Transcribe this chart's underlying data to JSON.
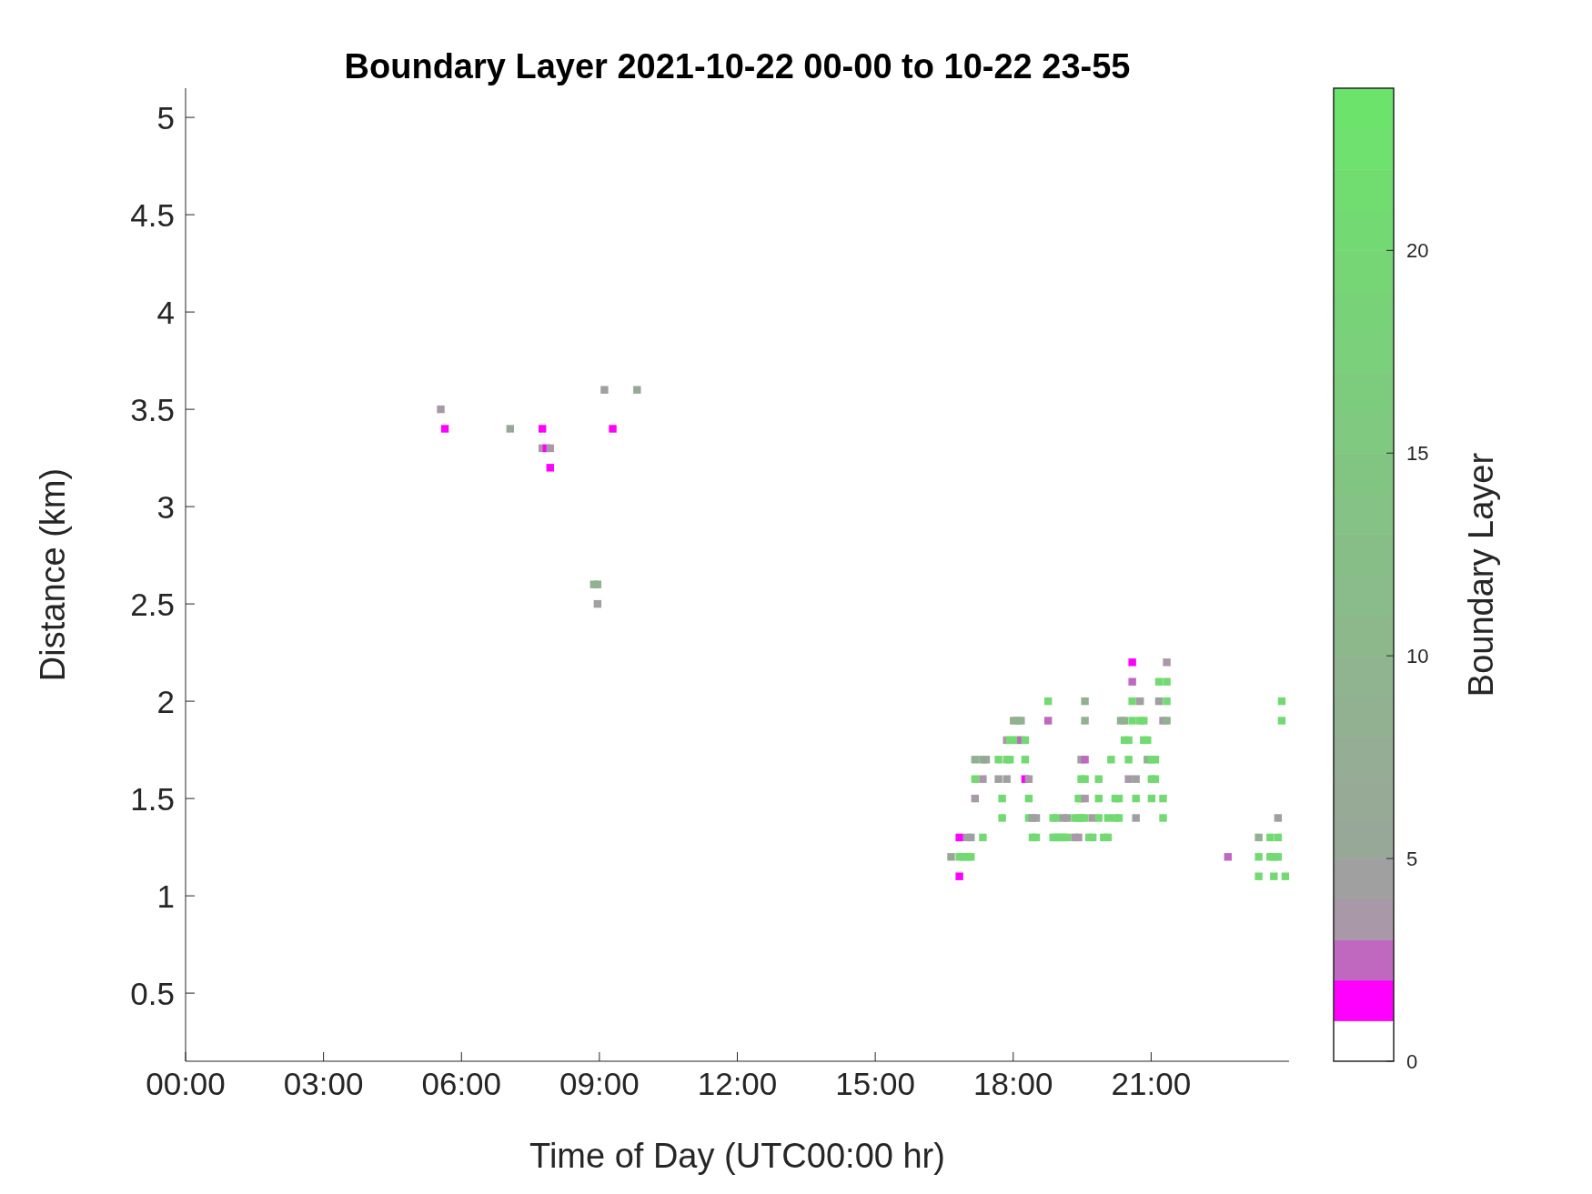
{
  "chart_data": {
    "type": "scatter",
    "title": "Boundary Layer 2021-10-22 00-00 to 10-22 23-55",
    "xlabel": "Time of Day (UTC00:00 hr)",
    "ylabel": "Distance (km)",
    "clabel": "Boundary Layer",
    "xlim": [
      0,
      24
    ],
    "xticks": [
      {
        "value": 0,
        "label": "00:00"
      },
      {
        "value": 3,
        "label": "03:00"
      },
      {
        "value": 6,
        "label": "06:00"
      },
      {
        "value": 9,
        "label": "09:00"
      },
      {
        "value": 12,
        "label": "12:00"
      },
      {
        "value": 15,
        "label": "15:00"
      },
      {
        "value": 18,
        "label": "18:00"
      },
      {
        "value": 21,
        "label": "21:00"
      }
    ],
    "ylim": [
      0.15,
      5.15
    ],
    "yticks": [
      0.5,
      1,
      1.5,
      2,
      2.5,
      3,
      3.5,
      4,
      4.5,
      5
    ],
    "clim": [
      0,
      24
    ],
    "cticks": [
      0,
      5,
      10,
      15,
      20
    ],
    "marker": "square",
    "series": [
      {
        "x": [
          5.55,
          5.64,
          7.06,
          7.76,
          7.76,
          7.85,
          7.93,
          7.93,
          9.11,
          9.82,
          9.29,
          8.88,
          8.96,
          8.96,
          16.65,
          16.83,
          16.83,
          16.83,
          16.92,
          17.0,
          17.0,
          17.08,
          17.08,
          17.17,
          17.17,
          17.17,
          17.34,
          17.34,
          17.34,
          17.41,
          17.68,
          17.68,
          17.76,
          17.76,
          17.86,
          17.86,
          17.86,
          17.93,
          17.93,
          18.01,
          18.01,
          18.09,
          18.09,
          18.17,
          18.17,
          18.26,
          18.26,
          18.26,
          18.34,
          18.34,
          18.34,
          18.42,
          18.42,
          18.5,
          18.5,
          18.76,
          18.76,
          18.87,
          18.87,
          18.95,
          18.95,
          19.01,
          19.09,
          19.09,
          19.17,
          19.17,
          19.34,
          19.34,
          19.42,
          19.42,
          19.42,
          19.48,
          19.48,
          19.48,
          19.48,
          19.56,
          19.56,
          19.56,
          19.56,
          19.56,
          19.56,
          19.65,
          19.73,
          19.73,
          19.86,
          19.86,
          19.86,
          19.97,
          20.06,
          20.06,
          20.13,
          20.22,
          20.22,
          20.3,
          20.3,
          20.34,
          20.42,
          20.42,
          20.51,
          20.51,
          20.51,
          20.59,
          20.59,
          20.59,
          20.59,
          20.67,
          20.67,
          20.67,
          20.76,
          20.76,
          20.84,
          20.84,
          20.92,
          20.92,
          21.01,
          21.01,
          21.01,
          21.09,
          21.09,
          21.17,
          21.17,
          21.26,
          21.26,
          21.26,
          21.34,
          21.34,
          21.34,
          21.34,
          22.67,
          23.34,
          23.34,
          23.34,
          23.59,
          23.59,
          23.67,
          23.67,
          23.76,
          23.76,
          23.76,
          23.84,
          23.84,
          23.92
        ],
        "values": [
          3.5,
          3.4,
          3.4,
          3.4,
          3.3,
          3.3,
          3.3,
          3.2,
          3.6,
          3.6,
          3.4,
          2.6,
          2.6,
          2.5,
          1.2,
          1.3,
          1.2,
          1.1,
          1.2,
          1.3,
          1.2,
          1.3,
          1.2,
          1.7,
          1.6,
          1.5,
          1.7,
          1.6,
          1.3,
          1.7,
          1.7,
          1.6,
          1.5,
          1.4,
          1.8,
          1.7,
          1.6,
          1.8,
          1.7,
          1.9,
          1.8,
          1.9,
          1.8,
          1.9,
          1.8,
          1.8,
          1.7,
          1.6,
          1.6,
          1.5,
          1.4,
          1.4,
          1.3,
          1.4,
          1.3,
          2.0,
          1.9,
          1.4,
          1.3,
          1.4,
          1.3,
          1.3,
          1.4,
          1.3,
          1.4,
          1.3,
          1.4,
          1.3,
          1.5,
          1.4,
          1.3,
          1.7,
          1.6,
          1.5,
          1.4,
          2.0,
          1.9,
          1.7,
          1.6,
          1.5,
          1.4,
          1.3,
          1.4,
          1.3,
          1.6,
          1.5,
          1.4,
          1.3,
          1.4,
          1.3,
          1.7,
          1.5,
          1.4,
          1.5,
          1.4,
          1.9,
          1.9,
          1.8,
          1.8,
          1.7,
          1.6,
          2.2,
          2.1,
          2.0,
          1.9,
          1.6,
          1.5,
          1.4,
          2.0,
          1.9,
          1.9,
          1.8,
          1.8,
          1.7,
          1.7,
          1.6,
          1.5,
          1.7,
          1.6,
          2.1,
          2.0,
          1.9,
          1.5,
          1.4,
          2.2,
          2.1,
          2.0,
          1.9,
          1.2,
          1.3,
          1.2,
          1.1,
          1.3,
          1.2,
          1.2,
          1.1,
          1.4,
          1.3,
          1.2,
          2.0,
          1.9,
          1.1
        ],
        "cvalues": [
          3.5,
          1.5,
          5.5,
          1.5,
          3.5,
          1.5,
          3.5,
          1.5,
          4.5,
          5.5,
          1.5,
          8,
          8,
          4.5,
          5.5,
          1.5,
          20,
          1.5,
          20,
          4.5,
          20,
          4.5,
          20,
          8,
          20,
          3.5,
          5.5,
          3.5,
          20,
          5.5,
          20,
          4.5,
          20,
          20,
          3.5,
          20,
          4.5,
          20,
          20,
          8,
          20,
          8,
          20,
          8,
          2.5,
          20,
          20,
          1.5,
          3.5,
          20,
          20,
          4.5,
          20,
          4.5,
          20,
          20,
          2.5,
          20,
          20,
          20,
          20,
          20,
          4.5,
          20,
          4.5,
          20,
          20,
          3.5,
          20,
          20,
          3.5,
          4.5,
          20,
          20,
          20,
          8,
          8,
          2.5,
          20,
          3.5,
          20,
          20,
          3.5,
          20,
          20,
          20,
          20,
          20,
          20,
          20,
          20,
          20,
          20,
          20,
          20,
          8,
          8,
          20,
          20,
          20,
          3.5,
          1.5,
          2.5,
          20,
          20,
          4.5,
          20,
          4.5,
          4.5,
          20,
          20,
          20,
          20,
          8,
          20,
          20,
          20,
          20,
          20,
          20,
          4.5,
          3.5,
          20,
          20,
          3.5,
          20,
          20,
          8,
          2.5,
          8,
          20,
          20,
          20,
          20,
          20,
          20,
          4.5,
          20,
          20,
          20,
          20,
          20
        ]
      }
    ]
  }
}
